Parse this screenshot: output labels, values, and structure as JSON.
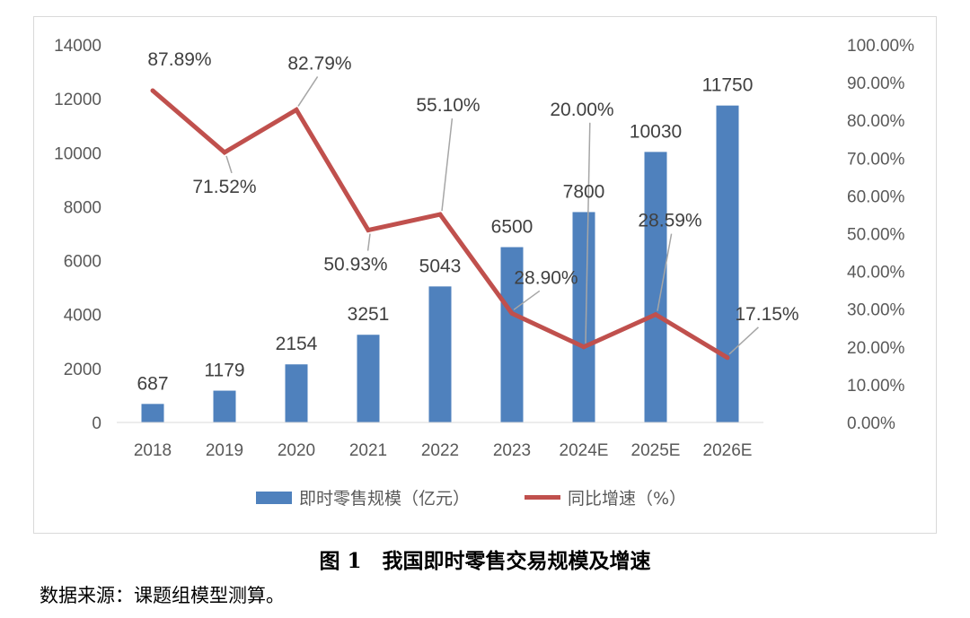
{
  "chart_data": {
    "type": "bar+line",
    "categories": [
      "2018",
      "2019",
      "2020",
      "2021",
      "2022",
      "2023",
      "2024E",
      "2025E",
      "2026E"
    ],
    "series": [
      {
        "name": "即时零售规模（亿元）",
        "type": "bar",
        "axis": "left",
        "values": [
          687,
          1179,
          2154,
          3251,
          5043,
          6500,
          7800,
          10030,
          11750
        ],
        "labels": [
          "687",
          "1179",
          "2154",
          "3251",
          "5043",
          "6500",
          "7800",
          "10030",
          "11750"
        ],
        "color": "#4f81bd"
      },
      {
        "name": "同比增速（%）",
        "type": "line",
        "axis": "right",
        "values": [
          87.89,
          71.52,
          82.79,
          50.93,
          55.1,
          28.9,
          20.0,
          28.59,
          17.15
        ],
        "labels": [
          "87.89%",
          "71.52%",
          "82.79%",
          "50.93%",
          "55.10%",
          "28.90%",
          "20.00%",
          "28.59%",
          "17.15%"
        ],
        "color": "#c0504d"
      }
    ],
    "left_axis": {
      "min": 0,
      "max": 14000,
      "ticks": [
        "0",
        "2000",
        "4000",
        "6000",
        "8000",
        "10000",
        "12000",
        "14000"
      ]
    },
    "right_axis": {
      "min": 0,
      "max": 100,
      "ticks": [
        "0.00%",
        "10.00%",
        "20.00%",
        "30.00%",
        "40.00%",
        "50.00%",
        "60.00%",
        "70.00%",
        "80.00%",
        "90.00%",
        "100.00%"
      ]
    },
    "grid": false,
    "legend_position": "bottom"
  },
  "caption": "图 1　我国即时零售交易规模及增速",
  "source_note": "数据来源：课题组模型测算。"
}
